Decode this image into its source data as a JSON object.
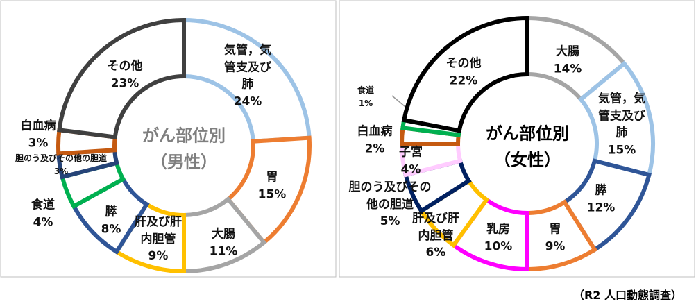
{
  "chart_data": [
    {
      "type": "donut",
      "title": "がん部位別",
      "subtitle": "（男性）",
      "categories": [
        "気管，気管支及び肺",
        "胃",
        "大腸",
        "肝及び肝内胆管",
        "膵",
        "食道",
        "胆のう及びその他の胆道",
        "白血病",
        "その他"
      ],
      "values": [
        24,
        15,
        11,
        9,
        8,
        4,
        3,
        3,
        23
      ],
      "value_labels": [
        "24%",
        "15%",
        "11%",
        "9%",
        "8%",
        "4%",
        "3%",
        "3%",
        "23%"
      ],
      "colors": [
        "#9dc3e6",
        "#ed7d31",
        "#a5a5a5",
        "#ffc000",
        "#2f5597",
        "#00b050",
        "#264478",
        "#c55a11",
        "#404040"
      ]
    },
    {
      "type": "donut",
      "title": "がん部位別",
      "subtitle": "（女性）",
      "categories": [
        "大腸",
        "気管，気管支及び肺",
        "膵",
        "胃",
        "乳房",
        "肝及び肝内胆管",
        "胆のう及びその他の胆道",
        "子宮",
        "白血病",
        "食道",
        "その他"
      ],
      "values": [
        14,
        15,
        12,
        9,
        10,
        6,
        5,
        4,
        2,
        1,
        22
      ],
      "value_labels": [
        "14%",
        "15%",
        "12%",
        "9%",
        "10%",
        "6%",
        "5%",
        "4%",
        "2%",
        "1%",
        "22%"
      ],
      "colors": [
        "#a5a5a5",
        "#9dc3e6",
        "#2f5597",
        "#ed7d31",
        "#ff00ff",
        "#ffc000",
        "#002060",
        "#ffccff",
        "#c55a11",
        "#00b050",
        "#000000"
      ]
    }
  ],
  "source": "（R2 人口動態調査）"
}
